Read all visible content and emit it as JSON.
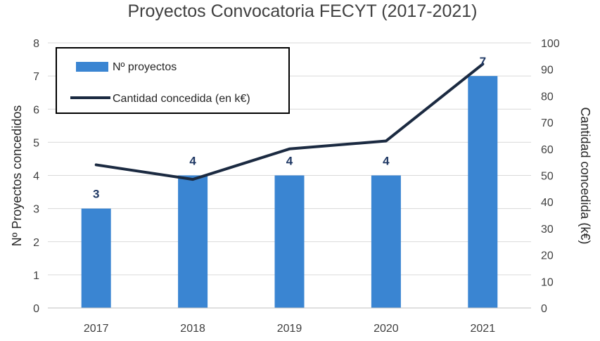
{
  "chart_data": {
    "type": "bar",
    "title": "Proyectos Convocatoria FECYT (2017-2021)",
    "categories": [
      "2017",
      "2018",
      "2019",
      "2020",
      "2021"
    ],
    "series": [
      {
        "name": "Nº proyectos",
        "type": "bar",
        "axis": "left",
        "values": [
          3,
          4,
          4,
          4,
          7
        ],
        "data_labels": [
          "3",
          "4",
          "4",
          "4",
          "7"
        ],
        "color": "#3a85d2"
      },
      {
        "name": "Cantidad concedida (en k€)",
        "type": "line",
        "axis": "right",
        "values": [
          54,
          48.5,
          60,
          63,
          92
        ],
        "color": "#1b2a41"
      }
    ],
    "ylabel": "Nº Proyectos concedidos",
    "y2label": "Cantidad concedida (k€)",
    "ylim": [
      0,
      8
    ],
    "y2lim": [
      0,
      100
    ],
    "yticks": [
      "0",
      "1",
      "2",
      "3",
      "4",
      "5",
      "6",
      "7",
      "8"
    ],
    "y2ticks": [
      "0",
      "10",
      "20",
      "30",
      "40",
      "50",
      "60",
      "70",
      "80",
      "90",
      "100"
    ],
    "grid": true,
    "legend_position": "top-left",
    "colors": {
      "label": "#1f3864",
      "grid": "#d9d9d9",
      "axis_text": "#404040"
    }
  }
}
